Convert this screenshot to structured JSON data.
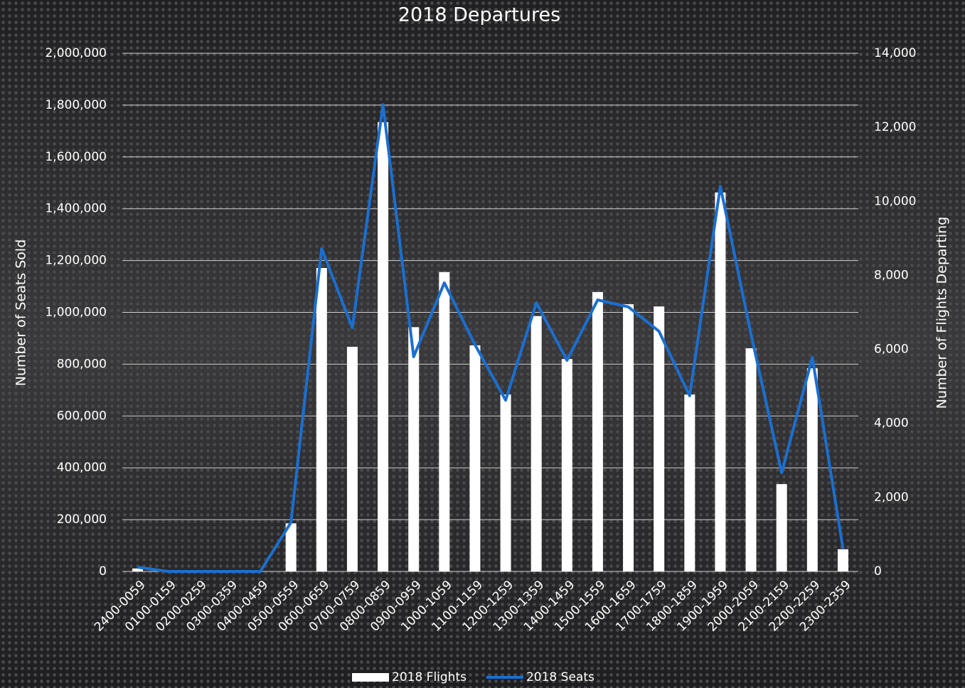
{
  "chart_data": {
    "type": "bar-line",
    "title": "2018 Departures",
    "ylabel": "Number of Seats Sold",
    "y2label": "Number of Flights Departing",
    "categories": [
      "2400-0059",
      "0100-0159",
      "0200-0259",
      "0300-0359",
      "0400-0459",
      "0500-0559",
      "0600-0659",
      "0700-0759",
      "0800-0859",
      "0900-0959",
      "1000-1059",
      "1100-1159",
      "1200-1259",
      "1300-1359",
      "1400-1459",
      "1500-1559",
      "1600-1659",
      "1700-1759",
      "1800-1859",
      "1900-1959",
      "2000-2059",
      "2100-2159",
      "2200-2259",
      "2300-2359"
    ],
    "series": [
      {
        "name": "2018 Flights",
        "type": "bar",
        "axis": "y2",
        "color": "#ffffff",
        "values": [
          80,
          0,
          0,
          0,
          0,
          1300,
          8200,
          6070,
          12140,
          6600,
          8090,
          6110,
          4780,
          6900,
          5740,
          7550,
          7220,
          7160,
          4780,
          10240,
          6030,
          2360,
          5490,
          600
        ]
      },
      {
        "name": "2018 Seats",
        "type": "line",
        "axis": "y",
        "color": "#1a6fd1",
        "values": [
          16000,
          0,
          0,
          0,
          0,
          189000,
          1246000,
          941000,
          1802000,
          829000,
          1114000,
          875000,
          661000,
          1037000,
          815000,
          1048000,
          1021000,
          927000,
          678000,
          1487000,
          916000,
          381000,
          826000,
          88000
        ]
      }
    ],
    "ylim": [
      0,
      2000000
    ],
    "yticks": [
      0,
      {
        "value": 200000,
        "label": "200,000"
      },
      {
        "value": 400000,
        "label": "400,000"
      },
      {
        "value": 600000,
        "label": "600,000"
      },
      {
        "value": 800000,
        "label": "800,000"
      },
      {
        "value": 1000000,
        "label": "1,000,000"
      },
      {
        "value": 1200000,
        "label": "1,200,000"
      },
      {
        "value": 1400000,
        "label": "1,400,000"
      },
      {
        "value": 1600000,
        "label": "1,600,000"
      },
      {
        "value": 1800000,
        "label": "1,800,000"
      },
      {
        "value": 2000000,
        "label": "2,000,000"
      }
    ],
    "y2lim": [
      0,
      14000
    ],
    "y2ticks": [
      0,
      {
        "value": 2000,
        "label": "2,000"
      },
      {
        "value": 4000,
        "label": "4,000"
      },
      {
        "value": 6000,
        "label": "6,000"
      },
      {
        "value": 8000,
        "label": "8,000"
      },
      {
        "value": 10000,
        "label": "10,000"
      },
      {
        "value": 12000,
        "label": "12,000"
      },
      {
        "value": 14000,
        "label": "14,000"
      }
    ],
    "grid": true,
    "legend": "bottom"
  }
}
